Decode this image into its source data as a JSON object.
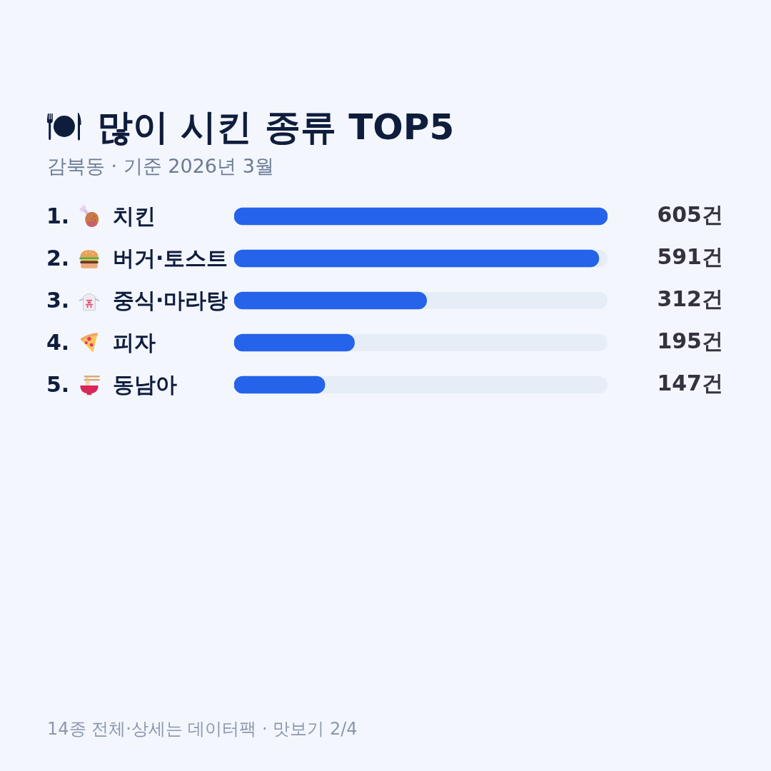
{
  "chart_data": {
    "type": "bar",
    "orientation": "horizontal",
    "title": "많이 시킨 종류 TOP5",
    "subtitle": "감북동 · 기준 2026년 3월",
    "categories": [
      "1. 치킨",
      "2. 버거·토스트",
      "3. 중식·마라탕",
      "4. 피자",
      "5. 동남아"
    ],
    "values": [
      605,
      591,
      312,
      195,
      147
    ],
    "value_labels": [
      "605건",
      "591건",
      "312건",
      "195건",
      "147건"
    ],
    "color": "#2563eb",
    "xlim": [
      0,
      605
    ],
    "tick_labels": "y",
    "annotations": [
      "14종 전체·상세는 데이터팩 · 맛보기 2/4"
    ]
  }
}
